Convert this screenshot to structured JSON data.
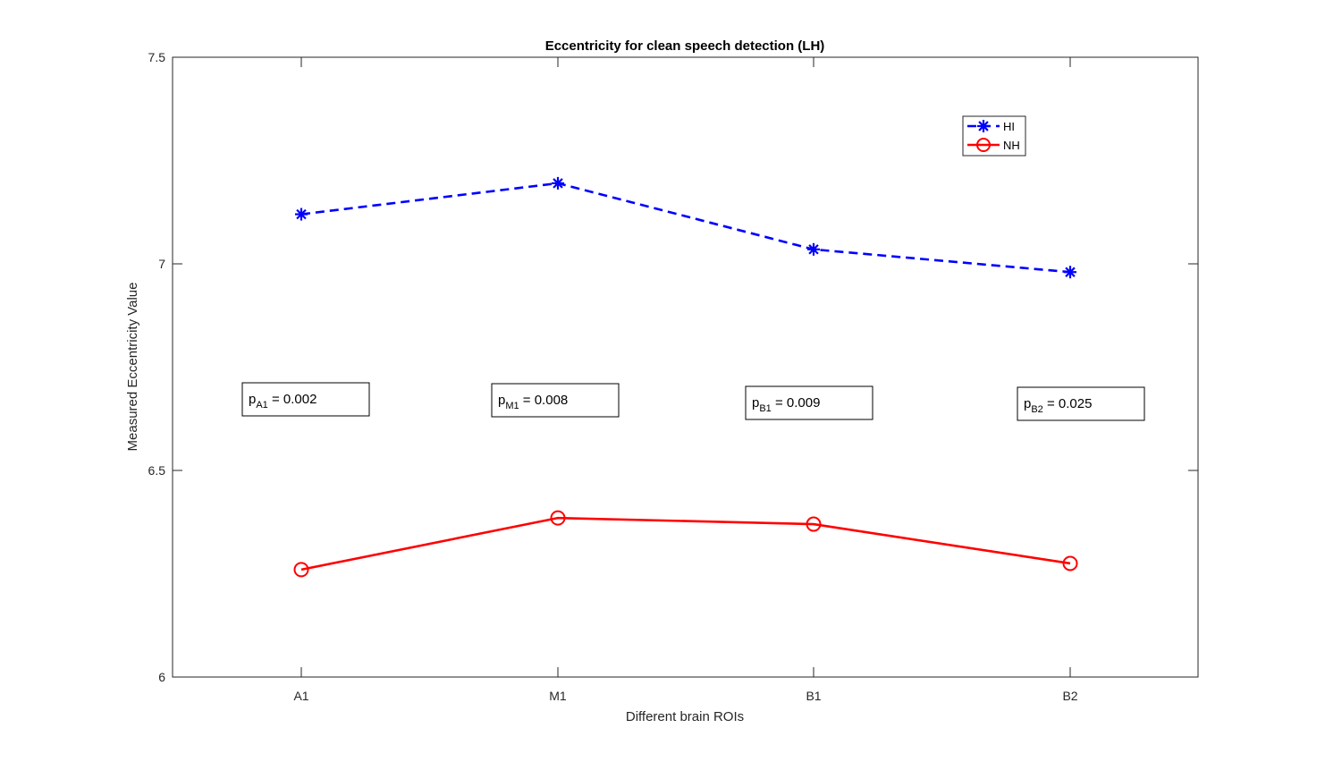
{
  "chart_data": {
    "type": "line",
    "title": "Eccentricity for clean speech detection (LH)",
    "xlabel": "Different brain ROIs",
    "ylabel": "Measured Eccentricity Value",
    "categories": [
      "A1",
      "M1",
      "B1",
      "B2"
    ],
    "ylim": [
      6,
      7.5
    ],
    "yticks": [
      "6",
      "6.5",
      "7",
      "7.5"
    ],
    "grid": false,
    "legend_position": "top-right",
    "series": [
      {
        "name": "HI",
        "values": [
          7.12,
          7.195,
          7.035,
          6.98
        ],
        "color": "#0000ff",
        "line_style": "dashed",
        "marker": "asterisk"
      },
      {
        "name": "NH",
        "values": [
          6.26,
          6.385,
          6.37,
          6.275
        ],
        "color": "#ff0000",
        "line_style": "solid",
        "marker": "circle"
      }
    ],
    "annotations": [
      {
        "p": "p",
        "sub": "A1",
        "text": " = 0.002"
      },
      {
        "p": "p",
        "sub": "M1",
        "text": " = 0.008"
      },
      {
        "p": "p",
        "sub": "B1",
        "text": " = 0.009"
      },
      {
        "p": "p",
        "sub": "B2",
        "text": " = 0.025"
      }
    ]
  }
}
